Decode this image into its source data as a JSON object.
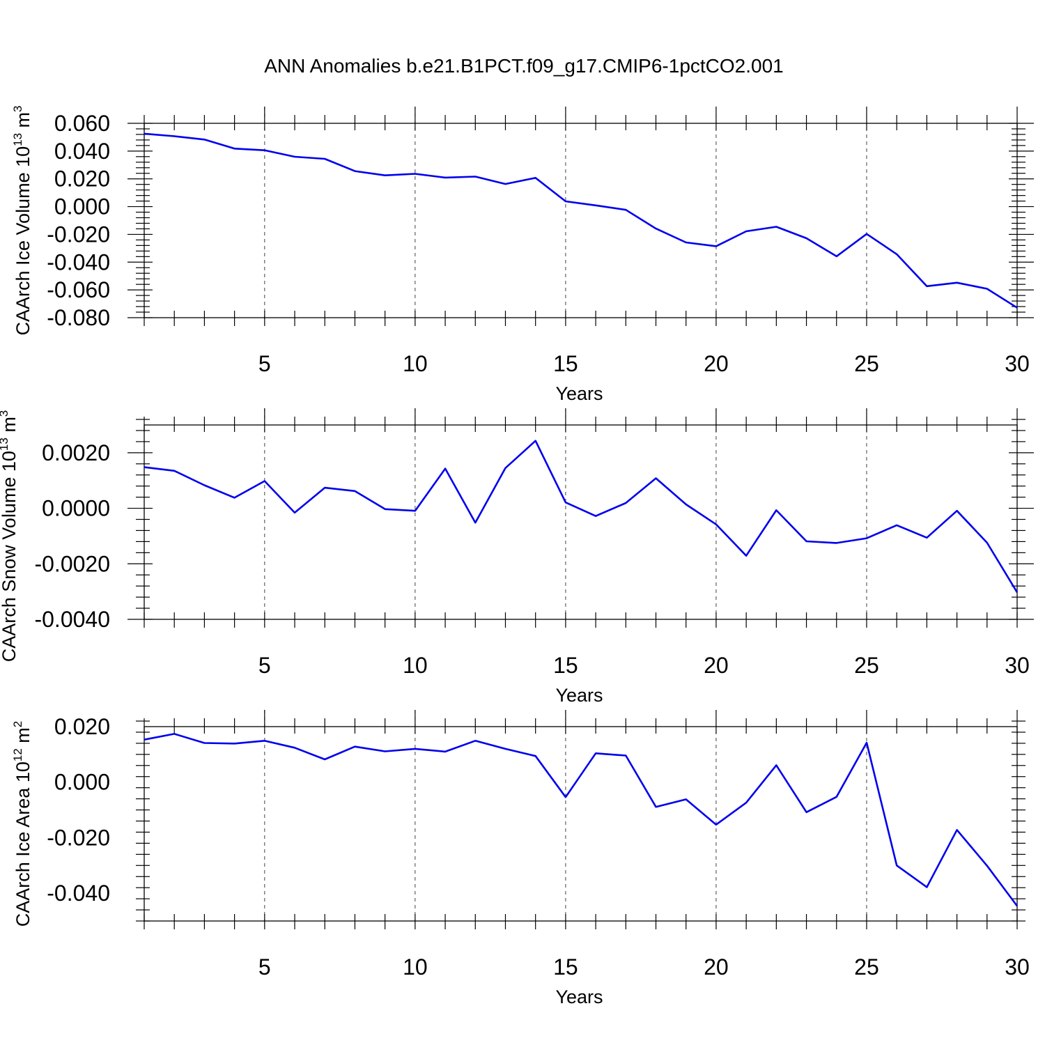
{
  "title": "ANN Anomalies b.e21.B1PCT.f09_g17.CMIP6-1pctCO2.001",
  "colors": {
    "line": "#0000ee",
    "axes": "#000000",
    "background": "#ffffff"
  },
  "chart_data": [
    {
      "type": "line",
      "ylabel": "CAArch Ice Volume",
      "ylabel_unit_base": "10",
      "ylabel_unit_exp": "13",
      "ylabel_unit_suffix": "m",
      "ylabel_unit_suffix_exp": "3",
      "xlabel": "Years",
      "xlim": [
        1,
        30
      ],
      "ylim": [
        -0.08,
        0.06
      ],
      "xticks": [
        5,
        10,
        15,
        20,
        25,
        30
      ],
      "xtick_labels": [
        "5",
        "10",
        "15",
        "20",
        "25",
        "30"
      ],
      "yticks": [
        -0.08,
        -0.06,
        -0.04,
        -0.02,
        0.0,
        0.02,
        0.04,
        0.06
      ],
      "ytick_labels": [
        "-0.080",
        "-0.060",
        "-0.040",
        "-0.020",
        "0.000",
        "0.020",
        "0.040",
        "0.060"
      ],
      "grid": "vertical dashed at major x ticks",
      "x": [
        1,
        2,
        3,
        4,
        5,
        6,
        7,
        8,
        9,
        10,
        11,
        12,
        13,
        14,
        15,
        16,
        17,
        18,
        19,
        20,
        21,
        22,
        23,
        24,
        25,
        26,
        27,
        28,
        29,
        30
      ],
      "values": [
        0.0525,
        0.0507,
        0.0483,
        0.0418,
        0.0406,
        0.0359,
        0.0344,
        0.0256,
        0.0225,
        0.0236,
        0.0209,
        0.0216,
        0.0163,
        0.0207,
        0.0038,
        0.0009,
        -0.0023,
        -0.0158,
        -0.0258,
        -0.0285,
        -0.0178,
        -0.0145,
        -0.0228,
        -0.0358,
        -0.0197,
        -0.0343,
        -0.0573,
        -0.0548,
        -0.0592,
        -0.0728
      ]
    },
    {
      "type": "line",
      "ylabel": "CAArch Snow Volume",
      "ylabel_unit_base": "10",
      "ylabel_unit_exp": "13",
      "ylabel_unit_suffix": "m",
      "ylabel_unit_suffix_exp": "3",
      "xlabel": "Years",
      "xlim": [
        1,
        30
      ],
      "ylim": [
        -0.004,
        0.003
      ],
      "xticks": [
        5,
        10,
        15,
        20,
        25,
        30
      ],
      "xtick_labels": [
        "5",
        "10",
        "15",
        "20",
        "25",
        "30"
      ],
      "yticks": [
        -0.004,
        -0.002,
        0.0,
        0.002
      ],
      "ytick_labels": [
        "-0.0040",
        "-0.0020",
        "0.0000",
        "0.0020"
      ],
      "grid": "vertical dashed at major x ticks",
      "x": [
        1,
        2,
        3,
        4,
        5,
        6,
        7,
        8,
        9,
        10,
        11,
        12,
        13,
        14,
        15,
        16,
        17,
        18,
        19,
        20,
        21,
        22,
        23,
        24,
        25,
        26,
        27,
        28,
        29,
        30
      ],
      "values": [
        0.00148,
        0.00135,
        0.00083,
        0.00038,
        0.00098,
        -0.00016,
        0.00074,
        0.00062,
        -3e-05,
        -9e-05,
        0.00143,
        -0.00052,
        0.00145,
        0.00243,
        0.00021,
        -0.00028,
        0.00019,
        0.00108,
        0.00014,
        -0.00058,
        -0.00171,
        -7e-05,
        -0.00119,
        -0.00125,
        -0.00108,
        -0.00061,
        -0.00106,
        -9e-05,
        -0.00124,
        -0.00303
      ]
    },
    {
      "type": "line",
      "ylabel": "CAArch Ice Area",
      "ylabel_unit_base": "10",
      "ylabel_unit_exp": "12",
      "ylabel_unit_suffix": "m",
      "ylabel_unit_suffix_exp": "2",
      "xlabel": "Years",
      "xlim": [
        1,
        30
      ],
      "ylim": [
        -0.05,
        0.02
      ],
      "xticks": [
        5,
        10,
        15,
        20,
        25,
        30
      ],
      "xtick_labels": [
        "5",
        "10",
        "15",
        "20",
        "25",
        "30"
      ],
      "yticks": [
        -0.04,
        -0.02,
        0.0,
        0.02
      ],
      "ytick_labels": [
        "-0.040",
        "-0.020",
        "0.000",
        "0.020"
      ],
      "grid": "vertical dashed at major x ticks",
      "x": [
        1,
        2,
        3,
        4,
        5,
        6,
        7,
        8,
        9,
        10,
        11,
        12,
        13,
        14,
        15,
        16,
        17,
        18,
        19,
        20,
        21,
        22,
        23,
        24,
        25,
        26,
        27,
        28,
        29,
        30
      ],
      "values": [
        0.0153,
        0.0174,
        0.0141,
        0.0139,
        0.0149,
        0.0124,
        0.0082,
        0.0128,
        0.0111,
        0.012,
        0.011,
        0.0149,
        0.012,
        0.0094,
        -0.0054,
        0.0104,
        0.0096,
        -0.0089,
        -0.0062,
        -0.0153,
        -0.0074,
        0.0061,
        -0.0108,
        -0.0053,
        0.0142,
        -0.03,
        -0.0378,
        -0.0172,
        -0.0301,
        -0.0446
      ]
    }
  ]
}
